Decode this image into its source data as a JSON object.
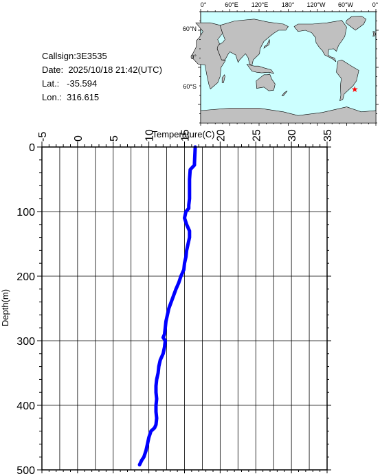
{
  "station": {
    "callsign_label": "Callsign:",
    "callsign": "3E3535",
    "date_label": "Date:",
    "date": "2025/10/18 21:42(UTC)",
    "lat_label": "Lat.:",
    "lat": "-35.594",
    "lon_label": "Lon.:",
    "lon": "316.615"
  },
  "map": {
    "lon_labels": [
      "0°",
      "60°E",
      "120°E",
      "180°",
      "120°W",
      "60°W",
      "0°"
    ],
    "lat_labels": [
      "60°N",
      "0°",
      "60°S"
    ],
    "ocean_color": "#ccffff",
    "land_color": "#c0c0c0",
    "marker_color": "#ff0000",
    "marker": {
      "lat": -35.594,
      "lon": 316.615
    }
  },
  "chart_data": {
    "type": "line",
    "xlabel": "Temperature(C)",
    "ylabel": "Depth(m)",
    "xlim": [
      -5,
      35
    ],
    "ylim": [
      0,
      500
    ],
    "x_ticks": [
      "-5",
      "0",
      "5",
      "10",
      "15",
      "20",
      "25",
      "30",
      "35"
    ],
    "y_ticks": [
      "0",
      "100",
      "200",
      "300",
      "400",
      "500"
    ],
    "x_axis_position": "top",
    "y_reversed": true,
    "grid": true,
    "line_color": "#0000ff",
    "series": [
      {
        "x": [
          16.5,
          16.4,
          16.4,
          15.8,
          15.7,
          15.7,
          15.7,
          15.7,
          15.6,
          15.6,
          15.2,
          15.0,
          15.3,
          15.7,
          15.7,
          15.5,
          15.3,
          15.2,
          15.0,
          14.9,
          14.5,
          14.2,
          13.8,
          13.3,
          12.8,
          12.6,
          12.4,
          12.3,
          12.2,
          12.0,
          12.3,
          12.2,
          12.0,
          11.6,
          11.4,
          11.3,
          11.1,
          11.0,
          11.0,
          11.1,
          11.0,
          11.0,
          11.1,
          11.0,
          10.8,
          10.3,
          10.0,
          9.8,
          9.6,
          9.3,
          9.0,
          8.7
        ],
        "y": [
          0,
          25,
          28,
          35,
          50,
          60,
          70,
          80,
          90,
          95,
          100,
          110,
          120,
          130,
          140,
          150,
          160,
          170,
          180,
          190,
          200,
          210,
          220,
          235,
          250,
          260,
          270,
          280,
          290,
          295,
          300,
          310,
          320,
          330,
          340,
          350,
          360,
          370,
          380,
          390,
          400,
          410,
          420,
          430,
          435,
          440,
          450,
          460,
          470,
          480,
          485,
          492
        ]
      }
    ]
  }
}
